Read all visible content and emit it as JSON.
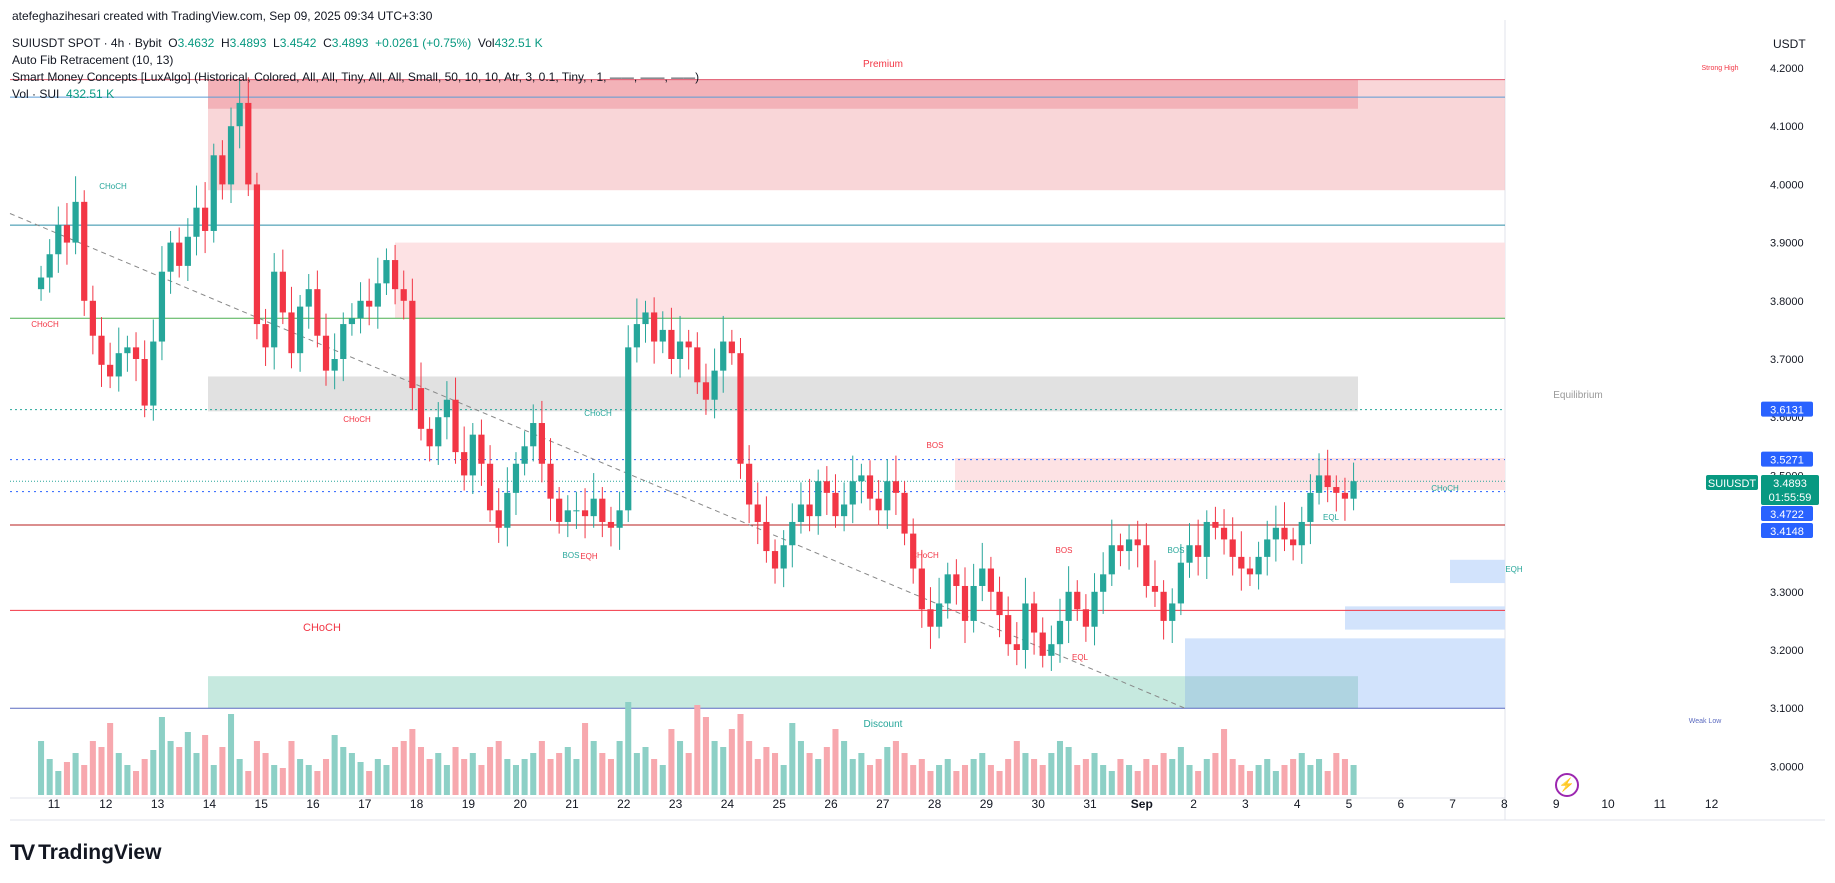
{
  "header": {
    "author": "atefeghazihesari created with TradingView.com, Sep 09, 2025 09:34 UTC+3:30",
    "symbol": "SUIUSDT SPOT · 4h · Bybit",
    "o_label": "O",
    "o": "3.4632",
    "h_label": "H",
    "h": "3.4893",
    "l_label": "L",
    "l": "3.4542",
    "c_label": "C",
    "c": "3.4893",
    "change": "+0.0261 (+0.75%)",
    "vol_label": "Vol",
    "vol": "432.51 K",
    "indicator1": "Auto Fib Retracement (10, 13)",
    "indicator2": "Smart Money Concepts [LuxAlgo] (Historical, Colored, All, All, Tiny, All, All, Small, 50, 10, 10, Atr, 3, 0.1, Tiny, , 1, ——, ——, ——)",
    "indicator3_name": "Vol · SUI",
    "indicator3_value": "432.51 K"
  },
  "currency": "USDT",
  "branding": {
    "name": "TradingView",
    "mark": "TV"
  },
  "colors": {
    "up": "#26a69a",
    "down": "#f23645",
    "up_vol": "#8dd0c6",
    "down_vol": "#f7a8ae",
    "premium": "#f6c4c8",
    "discount": "#b8e3d7",
    "equilibrium": "#d9d9d9",
    "accent": "#2962ff"
  },
  "chart_data": {
    "type": "candlestick",
    "symbol": "SUIUSDT",
    "timeframe": "4h",
    "y_axis": {
      "ticks": [
        "4.2000",
        "4.1000",
        "4.0000",
        "3.9000",
        "3.8000",
        "3.7000",
        "3.6000",
        "3.5000",
        "3.4000",
        "3.3000",
        "3.2000",
        "3.1000",
        "3.0000"
      ],
      "range": [
        2.95,
        4.25
      ]
    },
    "x_axis": {
      "ticks": [
        "11",
        "12",
        "13",
        "14",
        "15",
        "16",
        "17",
        "18",
        "19",
        "20",
        "21",
        "22",
        "23",
        "24",
        "25",
        "26",
        "27",
        "28",
        "29",
        "30",
        "31",
        "Sep",
        "2",
        "3",
        "4",
        "5",
        "6",
        "7",
        "8",
        "9",
        "10",
        "11",
        "12"
      ]
    },
    "price_labels": [
      {
        "text": "3.6131",
        "value": 3.6131,
        "color": "#2962ff"
      },
      {
        "text": "3.5271",
        "value": 3.5271,
        "color": "#2962ff"
      },
      {
        "text": "SUIUSDT",
        "value": 3.4893,
        "color": "#089981"
      },
      {
        "text": "3.4893",
        "value": 3.4893,
        "color": "#089981"
      },
      {
        "text": "01:55:59",
        "value": 3.4893,
        "color": "#089981"
      },
      {
        "text": "3.4722",
        "value": 3.4722,
        "color": "#2962ff"
      },
      {
        "text": "3.4148",
        "value": 3.4148,
        "color": "#2962ff"
      }
    ],
    "annotations": [
      "Premium",
      "Strong High",
      "Equilibrium",
      "Discount",
      "Weak Low",
      "CHoCH",
      "CHoCH",
      "CHoCH",
      "CHoCH",
      "CHoCH",
      "CHoCH",
      "BOS",
      "BOS",
      "BOS",
      "BOS",
      "EQH",
      "EQH",
      "EQL",
      "EQL",
      "CHoCH"
    ],
    "candles": {
      "start_day": 10.75,
      "step_days": 0.1667,
      "close": [
        3.84,
        3.88,
        3.93,
        3.9,
        3.97,
        3.8,
        3.74,
        3.69,
        3.67,
        3.71,
        3.72,
        3.7,
        3.62,
        3.73,
        3.85,
        3.9,
        3.86,
        3.91,
        3.96,
        3.92,
        4.05,
        4.0,
        4.1,
        4.14,
        4.0,
        3.76,
        3.72,
        3.85,
        3.78,
        3.71,
        3.79,
        3.82,
        3.74,
        3.68,
        3.7,
        3.76,
        3.77,
        3.8,
        3.79,
        3.83,
        3.87,
        3.82,
        3.8,
        3.65,
        3.58,
        3.55,
        3.6,
        3.63,
        3.54,
        3.5,
        3.57,
        3.52,
        3.44,
        3.41,
        3.47,
        3.52,
        3.55,
        3.59,
        3.52,
        3.46,
        3.42,
        3.44,
        3.44,
        3.43,
        3.46,
        3.42,
        3.41,
        3.44,
        3.72,
        3.76,
        3.78,
        3.73,
        3.75,
        3.7,
        3.73,
        3.72,
        3.66,
        3.63,
        3.68,
        3.73,
        3.71,
        3.52,
        3.45,
        3.42,
        3.37,
        3.34,
        3.38,
        3.42,
        3.45,
        3.43,
        3.49,
        3.47,
        3.43,
        3.45,
        3.49,
        3.5,
        3.46,
        3.44,
        3.49,
        3.47,
        3.4,
        3.34,
        3.27,
        3.24,
        3.28,
        3.33,
        3.31,
        3.25,
        3.31,
        3.34,
        3.3,
        3.26,
        3.21,
        3.2,
        3.28,
        3.23,
        3.19,
        3.21,
        3.25,
        3.3,
        3.27,
        3.24,
        3.3,
        3.33,
        3.38,
        3.37,
        3.39,
        3.38,
        3.31,
        3.3,
        3.25,
        3.28,
        3.35,
        3.38,
        3.36,
        3.42,
        3.41,
        3.39,
        3.36,
        3.34,
        3.33,
        3.36,
        3.39,
        3.41,
        3.39,
        3.38,
        3.42,
        3.47,
        3.5,
        3.48,
        3.47,
        3.46,
        3.49
      ]
    },
    "volume": {
      "label": "Vol · SUI",
      "values": [
        0.9,
        0.6,
        0.4,
        0.55,
        0.7,
        0.5,
        0.9,
        0.8,
        1.2,
        0.7,
        0.5,
        0.4,
        0.6,
        0.75,
        1.3,
        0.9,
        0.8,
        1.05,
        0.7,
        1.0,
        0.5,
        0.8,
        1.35,
        0.6,
        0.4,
        0.9,
        0.7,
        0.5,
        0.45,
        0.9,
        0.6,
        0.5,
        0.4,
        0.6,
        1.0,
        0.8,
        0.7,
        0.55,
        0.4,
        0.6,
        0.5,
        0.8,
        0.9,
        1.1,
        0.8,
        0.6,
        0.7,
        0.5,
        0.8,
        0.6,
        0.7,
        0.5,
        0.8,
        0.9,
        0.6,
        0.5,
        0.6,
        0.7,
        0.9,
        0.6,
        0.7,
        0.8,
        0.6,
        1.2,
        0.9,
        0.7,
        0.6,
        0.9,
        1.55,
        0.7,
        0.8,
        0.6,
        0.5,
        1.1,
        0.9,
        0.7,
        1.5,
        1.3,
        0.9,
        0.8,
        1.1,
        1.35,
        0.9,
        0.6,
        0.8,
        0.7,
        0.5,
        1.2,
        0.9,
        0.7,
        0.6,
        0.8,
        1.1,
        0.9,
        0.6,
        0.7,
        0.5,
        0.6,
        0.8,
        0.9,
        0.7,
        0.5,
        0.6,
        0.4,
        0.5,
        0.6,
        0.4,
        0.5,
        0.6,
        0.7,
        0.5,
        0.4,
        0.6,
        0.9,
        0.7,
        0.6,
        0.5,
        0.7,
        0.9,
        0.8,
        0.5,
        0.6,
        0.7,
        0.5,
        0.4,
        0.6,
        0.5,
        0.4,
        0.6,
        0.5,
        0.7,
        0.6,
        0.8,
        0.5,
        0.4,
        0.6,
        0.7,
        1.1,
        0.6,
        0.5,
        0.4,
        0.5,
        0.6,
        0.4,
        0.5,
        0.6,
        0.7,
        0.5,
        0.6,
        0.4,
        0.7,
        0.6,
        0.5
      ]
    }
  }
}
